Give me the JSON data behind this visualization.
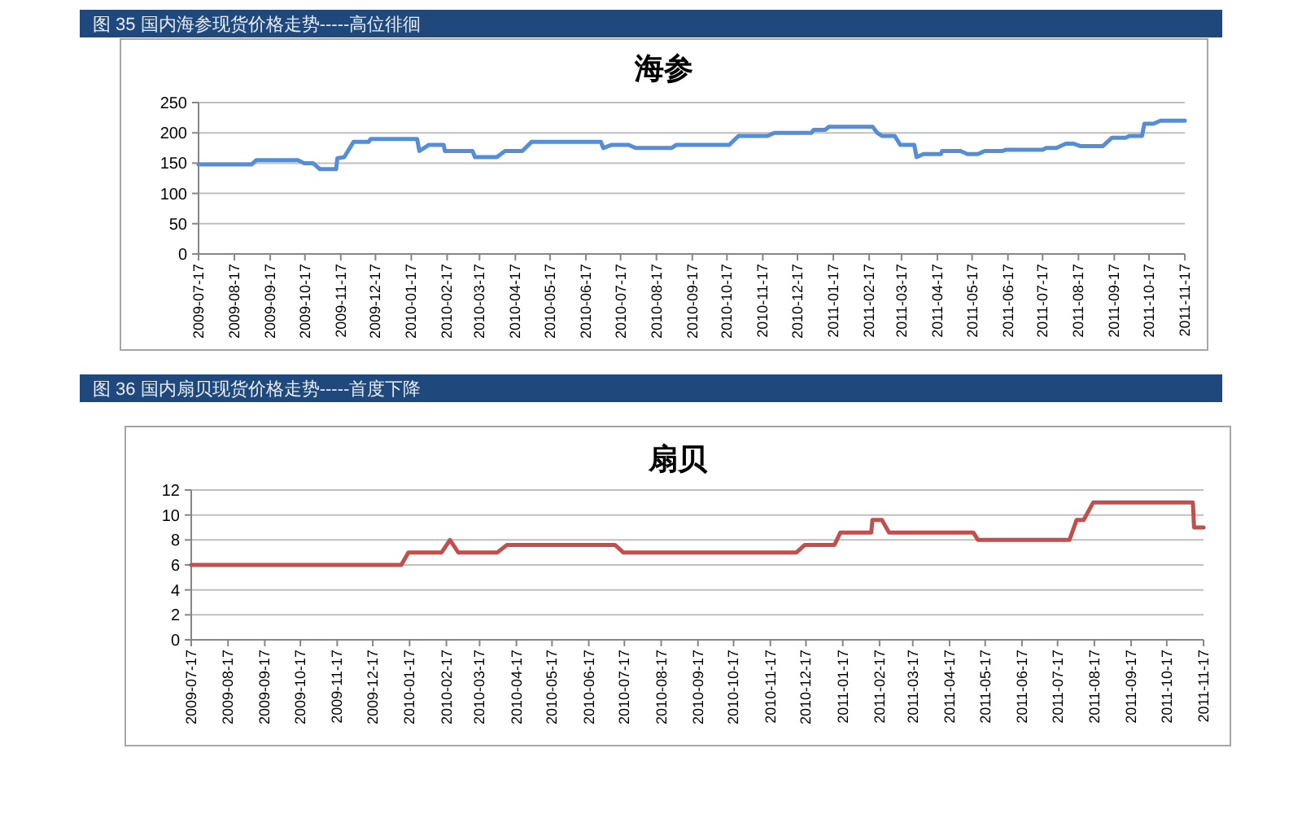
{
  "chart_data": [
    {
      "type": "line",
      "title": "海参",
      "annotations": [
        "图 35 国内海参现货价格走势-----高位徘徊"
      ],
      "x": [
        "2009-07-17",
        "2009-09-01",
        "2009-09-05",
        "2009-10-11",
        "2009-10-16",
        "2009-10-24",
        "2009-10-30",
        "2009-11-13",
        "2009-11-14",
        "2009-11-20",
        "2009-11-28",
        "2009-12-11",
        "2009-12-13",
        "2010-01-22",
        "2010-01-24",
        "2010-02-01",
        "2010-02-14",
        "2010-02-15",
        "2010-03-11",
        "2010-03-13",
        "2010-04-01",
        "2010-04-08",
        "2010-04-23",
        "2010-05-01",
        "2010-06-30",
        "2010-07-02",
        "2010-07-09",
        "2010-07-24",
        "2010-07-30",
        "2010-08-30",
        "2010-09-03",
        "2010-10-19",
        "2010-10-27",
        "2010-11-21",
        "2010-11-27",
        "2010-12-29",
        "2010-12-31",
        "2011-01-10",
        "2011-01-13",
        "2011-02-20",
        "2011-02-24",
        "2011-02-28",
        "2011-03-11",
        "2011-03-16",
        "2011-03-28",
        "2011-03-30",
        "2011-04-05",
        "2011-04-20",
        "2011-04-21",
        "2011-05-07",
        "2011-05-13",
        "2011-05-22",
        "2011-05-28",
        "2011-06-12",
        "2011-06-15",
        "2011-07-17",
        "2011-07-20",
        "2011-07-29",
        "2011-08-06",
        "2011-08-13",
        "2011-08-19",
        "2011-09-07",
        "2011-09-15",
        "2011-09-27",
        "2011-09-30",
        "2011-10-11",
        "2011-10-13",
        "2011-10-21",
        "2011-10-27",
        "2011-11-17"
      ],
      "series": [
        {
          "color": "#558ed5",
          "values": [
            148,
            148,
            155,
            155,
            150,
            150,
            140,
            140,
            158,
            160,
            185,
            185,
            190,
            190,
            170,
            180,
            180,
            170,
            170,
            160,
            160,
            170,
            170,
            185,
            185,
            175,
            180,
            180,
            175,
            175,
            180,
            180,
            195,
            195,
            200,
            200,
            205,
            205,
            210,
            210,
            200,
            195,
            195,
            180,
            180,
            160,
            165,
            165,
            170,
            170,
            165,
            165,
            170,
            170,
            172,
            172,
            175,
            175,
            182,
            182,
            178,
            178,
            192,
            192,
            195,
            195,
            215,
            215,
            220,
            220
          ]
        }
      ],
      "xlim": [
        "2009-07-17",
        "2011-11-17"
      ],
      "xticks": [
        "2009-07-17",
        "2009-08-17",
        "2009-09-17",
        "2009-10-17",
        "2009-11-17",
        "2009-12-17",
        "2010-01-17",
        "2010-02-17",
        "2010-03-17",
        "2010-04-17",
        "2010-05-17",
        "2010-06-17",
        "2010-07-17",
        "2010-08-17",
        "2010-09-17",
        "2010-10-17",
        "2010-11-17",
        "2010-12-17",
        "2011-01-17",
        "2011-02-17",
        "2011-03-17",
        "2011-04-17",
        "2011-05-17",
        "2011-06-17",
        "2011-07-17",
        "2011-08-17",
        "2011-09-17",
        "2011-10-17",
        "2011-11-17"
      ],
      "ylim": [
        0,
        250
      ],
      "yticks": [
        0,
        50,
        100,
        150,
        200,
        250
      ],
      "grid": "y"
    },
    {
      "type": "line",
      "title": "扇贝",
      "annotations": [
        "图 36 国内扇贝现货价格走势-----首度下降"
      ],
      "x": [
        "2009-07-17",
        "2010-01-10",
        "2010-01-16",
        "2010-02-13",
        "2010-02-20",
        "2010-02-27",
        "2010-04-01",
        "2010-04-09",
        "2010-07-09",
        "2010-07-16",
        "2010-12-09",
        "2010-12-16",
        "2011-01-10",
        "2011-01-15",
        "2011-02-10",
        "2011-02-11",
        "2011-02-19",
        "2011-02-25",
        "2011-05-07",
        "2011-05-11",
        "2011-07-27",
        "2011-08-02",
        "2011-08-08",
        "2011-08-16",
        "2011-11-08",
        "2011-11-09",
        "2011-11-17"
      ],
      "series": [
        {
          "color": "#c0504d",
          "values": [
            6,
            6,
            7,
            7,
            8,
            7,
            7,
            7.6,
            7.6,
            7,
            7,
            7.6,
            7.6,
            8.6,
            8.6,
            9.6,
            9.6,
            8.6,
            8.6,
            8,
            8,
            9.6,
            9.6,
            11,
            11,
            9,
            9
          ]
        }
      ],
      "xlim": [
        "2009-07-17",
        "2011-11-17"
      ],
      "xticks": [
        "2009-07-17",
        "2009-08-17",
        "2009-09-17",
        "2009-10-17",
        "2009-11-17",
        "2009-12-17",
        "2010-01-17",
        "2010-02-17",
        "2010-03-17",
        "2010-04-17",
        "2010-05-17",
        "2010-06-17",
        "2010-07-17",
        "2010-08-17",
        "2010-09-17",
        "2010-10-17",
        "2010-11-17",
        "2010-12-17",
        "2011-01-17",
        "2011-02-17",
        "2011-03-17",
        "2011-04-17",
        "2011-05-17",
        "2011-06-17",
        "2011-07-17",
        "2011-08-17",
        "2011-09-17",
        "2011-10-17",
        "2011-11-17"
      ],
      "ylim": [
        0,
        12
      ],
      "yticks": [
        0,
        2,
        4,
        6,
        8,
        10,
        12
      ],
      "grid": "y"
    }
  ]
}
